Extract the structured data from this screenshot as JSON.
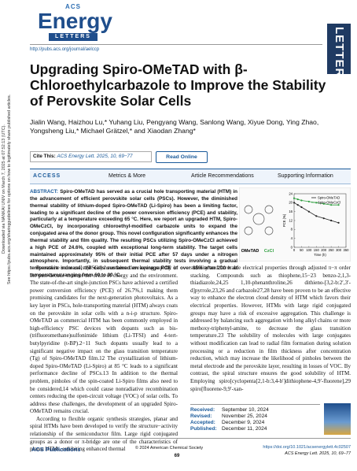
{
  "sidebar": [
    "Downloaded via NANKAI UNIV on March 7, 2025 at 07:52:13 (UTC).",
    "See https://pubs.acs.org/sharingguidelines for options on how to legitimately share published articles."
  ],
  "header": {
    "logo_top": "ACS",
    "logo_main": "Energy",
    "logo_sub": "LETTERS",
    "url": "http://pubs.acs.org/journal/aelccp",
    "section": "LETTER"
  },
  "article": {
    "title": "Upgrading Spiro-OMeTAD with β-Chloroethylcarbazole to Improve the Stability of Perovskite Solar Cells",
    "authors": "Jialin Wang, Haizhou Lu,* Yuhang Liu, Pengyang Wang, Sanlong Wang, Xiyue Dong, Ying Zhao, Yongsheng Liu,* Michael Grätzel,* and Xiaodan Zhang*",
    "cite_label": "Cite This:",
    "citation": "ACS Energy Lett. 2025, 10, 69−77",
    "read_online": "Read Online"
  },
  "access": {
    "label": "ACCESS",
    "links": [
      "Metrics & More",
      "Article Recommendations",
      "Supporting Information"
    ]
  },
  "abstract": {
    "label": "ABSTRACT:",
    "text": "Spiro-OMeTAD has served as a crucial hole transporting material (HTM) in the advancement of efficient perovskite solar cells (PSCs). However, the diminished thermal stability of lithium-doped Spiro-OMeTAD (Li-Spiro) has been a limiting factor, leading to a significant decline of the power conversion efficiency (PCE) and stability, particularly at a temperature exceeding 65 °C. Here, we report an upgraded HTM, Spiro-OMeCzCl, by incorporating chloroethyl-modified carbazole units to expand the conjugated area of the donor group. This novel configuration significantly enhances the thermal stability and film quality. The resulting PSCs utilizing Spiro-OMeCzCl achieved a high PCE of 24.6%, coupled with exceptional long-term stability. The target cells maintained approximately 95% of their initial PCE after 57 days under a nitrogen atmosphere. Importantly, in subsequent thermal stability tests involving a gradual temperature increase, the cells sustained an average PCE of over 85% after 200 h at temperatures ranging from 60 to 90 °C."
  },
  "toc_figure": {
    "type": "line",
    "x_label": "Time (h)",
    "y_label": "PCE (%)",
    "x": [
      0,
      25,
      50,
      100,
      150,
      200,
      250,
      300
    ],
    "series": [
      {
        "name": "Spiro-OMeTAD",
        "color": "#222222",
        "values": [
          20,
          19,
          18,
          16,
          14,
          13,
          12,
          11
        ]
      },
      {
        "name": "Spiro-OMeCzCl",
        "color": "#2e9e3e",
        "values": [
          22,
          21.5,
          21,
          20.5,
          20,
          19.5,
          19,
          19
        ]
      }
    ],
    "xlim": [
      0,
      350
    ],
    "xticks": [
      0,
      50,
      100,
      150,
      200,
      250,
      300,
      350
    ],
    "ylim": [
      0,
      24
    ],
    "yticks": [
      0,
      4,
      8,
      12,
      16,
      20,
      24
    ],
    "molecule_labels": [
      "OMeTAD",
      "CzCl"
    ]
  },
  "body": {
    "left": [
      "Perovskite solar cells (PSCs) have been developing rapidly in the past decade to meet the crisis of energy and the environment. The state-of-the-art single-junction PSCs have achieved a certified power conversion efficiency (PCE) of 26.7%,1 making them promising candidates for the next-generation photovoltaics. As a key layer in PSCs, hole-transporting material (HTM) always coats on the perovskite in solar cells with a n-i-p structure. Spiro-OMeTAD as commercial HTM has been commonly employed in high-efficiency PSC devices with dopants such as bis-(trifluoromethane)sulfonimide lithium (Li-TFSI) and 4-tert-butylpyridine (t-BP).2−11 Such dopants usually lead to a significant negative impact on the glass transition temperature (Tg) of Spiro-OMeTAD film.12 The crystallization of lithium-doped Spiro-OMeTAD (Li-Spiro) at 85 °C leads to a significant performance decline of PSCs.13 In addition to the thermal problem, pinholes of the spin-coated Li-Spiro films also need to be considered,14 which could cause nonradiative recombination centers reducing the open-circuit voltage (VOC) of solar cells. To address these challenges, the development of an upgraded Spiro-OMeTAD remains crucial.",
      "According to flexible organic synthesis strategies, planar and spiral HTMs have been developed to verify the structure−activity relationship of the semiconductor film. Large rigid conjugated groups as a donor or π-bridge are one of the characteristics of planar HTMs, exhibiting enhanced thermal"
    ],
    "right": [
      "stability and favorable electrical properties through adjusted π−π order stacking. Compounds such as thiophene,15−23 benzo-2,1,3-thiadiazole,24,25 1,10-phenanthroline,26 dithieno-[3,2-b:2′,3′-d]pyrrole,23,26 and carbazole27,28 have been proven to be an effective way to enhance the electron cloud density of HTM which favors their electrical properties. However, HTMs with large rigid conjugated groups may have a risk of excessive aggregation. This challenge is addressed by balancing such aggregation with long alkyl chains or more methoxy-triphenyl-amine, to decrease the glass transition temperature.23 The solubility of molecules with large conjugates without modification can lead to radial film formation during solution processing or a reduction in film thickness after concentration reduction, which may increase the likelihood of pinholes between the metal electrode and the perovskite layer, resulting in losses of VOC. By contrast, the spiral structure ensures the good solubility of HTM. Employing spiro[cyclopenta[2,1-b:3,4-b′]dithiophene-4,9′-fluorene],29 spiro[fluorene-9,9′-xan-"
    ]
  },
  "history": [
    {
      "label": "Received:",
      "date": "September 10, 2024"
    },
    {
      "label": "Revised:",
      "date": "November 25, 2024"
    },
    {
      "label": "Accepted:",
      "date": "December 9, 2024"
    },
    {
      "label": "Published:",
      "date": "December 11, 2024"
    }
  ],
  "footer": {
    "publisher": "ACS Publications",
    "copyright": "© 2024 American Chemical Society",
    "page": "69",
    "doi": "https://doi.org/10.1021/acsenergylett.4c02507",
    "citation": "ACS Energy Lett. 2025, 10, 69−77"
  }
}
